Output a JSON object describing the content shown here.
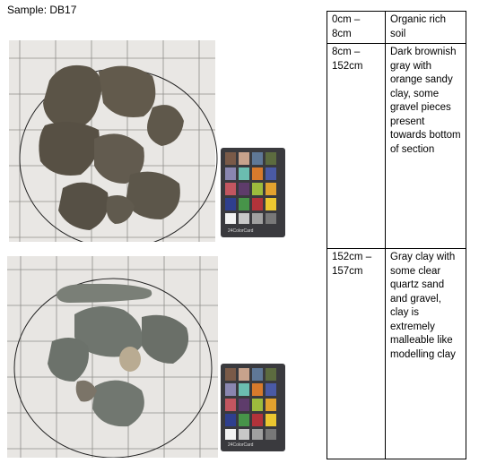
{
  "sample": {
    "label": "Sample: DB17"
  },
  "photos": [
    {
      "name": "upper-section-photo",
      "color_card_label": "24ColorCard"
    },
    {
      "name": "lower-section-photo",
      "color_card_label": "24ColorCard"
    }
  ],
  "colors": {
    "grid_paper": "#e9e7e4",
    "soil_upper": "#5b5447",
    "clay_lower": "#6f756e",
    "card_body": "#3a3a3e"
  },
  "log_table": {
    "rows": [
      {
        "depth": "0cm – 8cm",
        "description": "Organic rich soil"
      },
      {
        "depth": "8cm – 152cm",
        "description": "Dark brownish gray with orange sandy clay, some gravel pieces present towards bottom of section"
      },
      {
        "depth": "152cm – 157cm",
        "description": "Gray clay with some clear quartz sand and gravel, clay is extremely malleable like modelling clay"
      }
    ]
  }
}
